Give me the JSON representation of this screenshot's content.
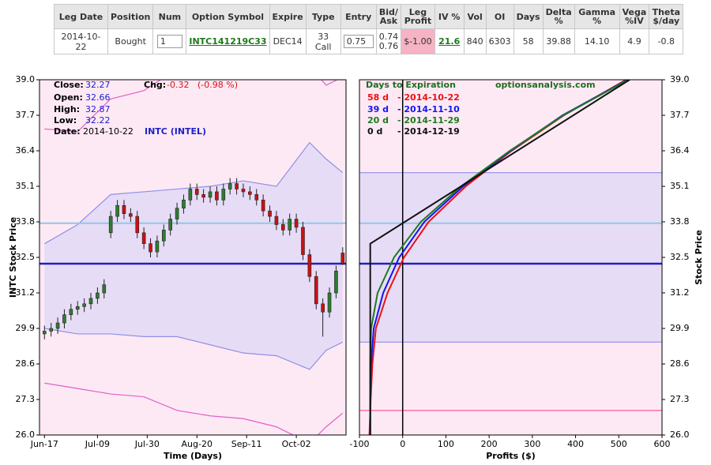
{
  "table": {
    "headers": [
      "Leg Date",
      "Position",
      "Num",
      "Option Symbol",
      "Expire",
      "Type",
      "Entry",
      "Bid/ Ask",
      "Leg Profit",
      "IV %",
      "Vol",
      "OI",
      "Days",
      "Delta %",
      "Gamma %",
      "Vega %IV",
      "Theta $/day"
    ],
    "rows": [
      [
        "2014-10-22",
        "Bought",
        "1",
        "INTC141219C33",
        "DEC14",
        "33 Call",
        "0.75",
        [
          "0.74",
          "0.76"
        ],
        "$-1.00",
        "21.6",
        "840",
        "6303",
        "58",
        "39.88",
        "14.10",
        "4.9",
        "-0.8"
      ]
    ]
  },
  "chart_data": [
    {
      "type": "candlestick",
      "y_label": "INTC Stock Price",
      "x_label": "Time (Days)",
      "stats": [
        {
          "label": "Close:",
          "value": 32.27
        },
        {
          "label": "Open:",
          "value": 32.66
        },
        {
          "label": "High:",
          "value": 32.87
        },
        {
          "label": "Low:",
          "value": 32.22
        },
        {
          "label": "Date:",
          "value": "2014-10-22"
        }
      ],
      "change_label": "Chg:",
      "change": -0.32,
      "change_pct": "(-0.98 %)",
      "ticker": "INTC (INTEL)",
      "xlim": [
        -1.5,
        91
      ],
      "ylim": [
        26.0,
        39.0
      ],
      "xticks": [
        {
          "value": 0,
          "label": "Jun-17"
        },
        {
          "value": 16,
          "label": "Jul-09"
        },
        {
          "value": 31,
          "label": "Jul-30"
        },
        {
          "value": 46,
          "label": "Aug-20"
        },
        {
          "value": 61,
          "label": "Sep-11"
        },
        {
          "value": 76,
          "label": "Oct-02"
        }
      ],
      "yticks": [
        {
          "value": 26.0,
          "label": "26.0"
        },
        27.3,
        28.6,
        29.9,
        31.2,
        32.5,
        33.8,
        35.1,
        36.4,
        37.7,
        {
          "value": 39.0,
          "label": "39.0"
        }
      ],
      "y_axis_side": "left",
      "background": "#fde9f4",
      "band_fill": "#e7dcf6",
      "inner_band_color": "#8f8fe8",
      "outer_band_color": "#e060c8",
      "up_color": "#2e7d2e",
      "down_color": "#cc1111",
      "x": [
        0,
        2,
        4,
        6,
        8,
        10,
        12,
        14,
        16,
        18,
        20,
        22,
        24,
        26,
        28,
        30,
        32,
        34,
        36,
        38,
        40,
        42,
        44,
        46,
        48,
        50,
        52,
        54,
        56,
        58,
        60,
        62,
        64,
        66,
        68,
        70,
        72,
        74,
        76,
        78,
        80,
        82,
        84,
        86,
        88,
        90
      ],
      "open": [
        29.7,
        29.8,
        29.9,
        30.1,
        30.4,
        30.6,
        30.7,
        30.8,
        31.0,
        31.2,
        33.4,
        34.0,
        34.4,
        34.1,
        34.0,
        33.4,
        33.0,
        32.7,
        33.1,
        33.5,
        33.9,
        34.3,
        34.6,
        35.0,
        34.8,
        34.7,
        34.9,
        34.6,
        35.0,
        35.2,
        35.0,
        34.9,
        34.8,
        34.6,
        34.2,
        34.0,
        33.7,
        33.5,
        33.9,
        33.6,
        32.6,
        31.8,
        30.8,
        30.5,
        31.2,
        32.66
      ],
      "high": [
        30.0,
        30.1,
        30.3,
        30.6,
        30.8,
        30.9,
        31.0,
        31.2,
        31.4,
        31.7,
        34.2,
        34.6,
        34.6,
        34.3,
        34.2,
        33.6,
        33.2,
        33.3,
        33.7,
        34.1,
        34.5,
        34.8,
        35.2,
        35.2,
        35.0,
        35.1,
        35.1,
        35.2,
        35.4,
        35.4,
        35.2,
        35.1,
        35.0,
        34.8,
        34.4,
        34.2,
        33.9,
        34.1,
        34.1,
        33.8,
        32.8,
        32.0,
        31.0,
        31.4,
        32.2,
        32.87
      ],
      "low": [
        29.5,
        29.6,
        29.7,
        29.9,
        30.2,
        30.4,
        30.5,
        30.6,
        30.8,
        31.0,
        33.2,
        33.8,
        33.9,
        33.8,
        33.2,
        32.8,
        32.5,
        32.5,
        32.9,
        33.3,
        33.7,
        34.1,
        34.4,
        34.6,
        34.5,
        34.5,
        34.4,
        34.4,
        34.8,
        34.8,
        34.7,
        34.6,
        34.4,
        34.0,
        33.8,
        33.5,
        33.3,
        33.3,
        33.4,
        32.4,
        31.6,
        30.6,
        29.6,
        30.3,
        31.0,
        32.22
      ],
      "close": [
        29.8,
        29.9,
        30.1,
        30.4,
        30.6,
        30.7,
        30.8,
        31.0,
        31.2,
        31.5,
        34.0,
        34.4,
        34.1,
        34.0,
        33.4,
        33.0,
        32.7,
        33.1,
        33.5,
        33.9,
        34.3,
        34.6,
        35.0,
        34.8,
        34.7,
        34.9,
        34.6,
        35.0,
        35.2,
        35.0,
        34.9,
        34.8,
        34.6,
        34.2,
        34.0,
        33.7,
        33.5,
        33.9,
        33.6,
        32.6,
        31.8,
        30.8,
        30.5,
        31.2,
        32.0,
        32.27
      ],
      "bands": {
        "x": [
          0,
          10,
          20,
          30,
          40,
          50,
          60,
          70,
          80,
          85,
          90
        ],
        "inner_upper": [
          33.0,
          33.7,
          34.8,
          34.9,
          35.0,
          35.1,
          35.3,
          35.1,
          36.7,
          36.1,
          35.6
        ],
        "inner_lower": [
          29.9,
          29.7,
          29.7,
          29.6,
          29.6,
          29.3,
          29.0,
          28.9,
          28.4,
          29.1,
          29.4
        ],
        "outer_upper": [
          37.2,
          37.1,
          38.3,
          38.6,
          39.4,
          39.8,
          40.0,
          39.8,
          39.5,
          38.8,
          39.1
        ],
        "outer_lower": [
          27.9,
          27.7,
          27.5,
          27.4,
          26.9,
          26.7,
          26.6,
          26.3,
          25.7,
          26.3,
          26.8
        ]
      },
      "hlines": [
        {
          "value": 33.75,
          "color": "#8ec8e8",
          "width": 2
        },
        {
          "value": 32.27,
          "color": "#2020c0",
          "width": 2.5
        }
      ]
    },
    {
      "type": "line",
      "y_label": "Stock Price",
      "x_label": "Profits ($)",
      "legend_title": "Days to Expiration",
      "site": "optionsanalysis.com",
      "xlim": [
        -100,
        600
      ],
      "ylim": [
        26.0,
        39.0
      ],
      "xticks": [
        -100,
        0,
        100,
        200,
        300,
        400,
        500,
        600
      ],
      "yticks": [
        {
          "value": 26.0,
          "label": "26.0"
        },
        27.3,
        28.6,
        29.9,
        31.2,
        32.5,
        33.8,
        35.1,
        36.4,
        37.7,
        {
          "value": 39.0,
          "label": "39.0"
        }
      ],
      "y_axis_side": "right",
      "background": "#fde9f4",
      "band_fill": "#e7dcf6",
      "band": [
        29.4,
        35.6
      ],
      "band_color": "#8f8fe8",
      "hlines": [
        {
          "value": 33.75,
          "color": "#8ec8e8",
          "width": 2
        },
        {
          "value": 32.27,
          "color": "#2020c0",
          "width": 2.5
        },
        {
          "value": 26.9,
          "color": "#ff6fae",
          "width": 1.5
        }
      ],
      "vlines": [
        0
      ],
      "series": [
        {
          "name": "58 d",
          "legend_date": "- 2014-10-22",
          "color": "#ee1111",
          "y": [
            26.0,
            27.3,
            28.6,
            29.9,
            31.2,
            32.5,
            33.8,
            35.1,
            36.4,
            37.7,
            39.0
          ],
          "x": [
            -77,
            -74,
            -70,
            -62,
            -35,
            3,
            60,
            146,
            252,
            373,
            517
          ]
        },
        {
          "name": "39 d",
          "legend_date": "- 2014-11-10",
          "color": "#1515ee",
          "y": [
            26.0,
            27.3,
            28.6,
            29.9,
            31.2,
            32.5,
            33.8,
            35.1,
            36.4,
            37.7,
            39.0
          ],
          "x": [
            -75,
            -75,
            -73,
            -67,
            -45,
            -8,
            50,
            140,
            250,
            370,
            520
          ]
        },
        {
          "name": "20 d",
          "legend_date": "- 2014-11-29",
          "color": "#1e7a1e",
          "y": [
            26.0,
            27.3,
            28.6,
            29.9,
            31.2,
            32.5,
            33.8,
            35.1,
            36.4,
            37.7,
            39.0
          ],
          "x": [
            -75,
            -75,
            -75,
            -73,
            -58,
            -20,
            42,
            135,
            248,
            372,
            522
          ]
        },
        {
          "name": "0 d",
          "legend_date": "- 2014-12-19",
          "color": "#111111",
          "y": [
            26.0,
            33.0,
            39.0
          ],
          "x": [
            -75,
            -75,
            525
          ]
        }
      ]
    }
  ]
}
